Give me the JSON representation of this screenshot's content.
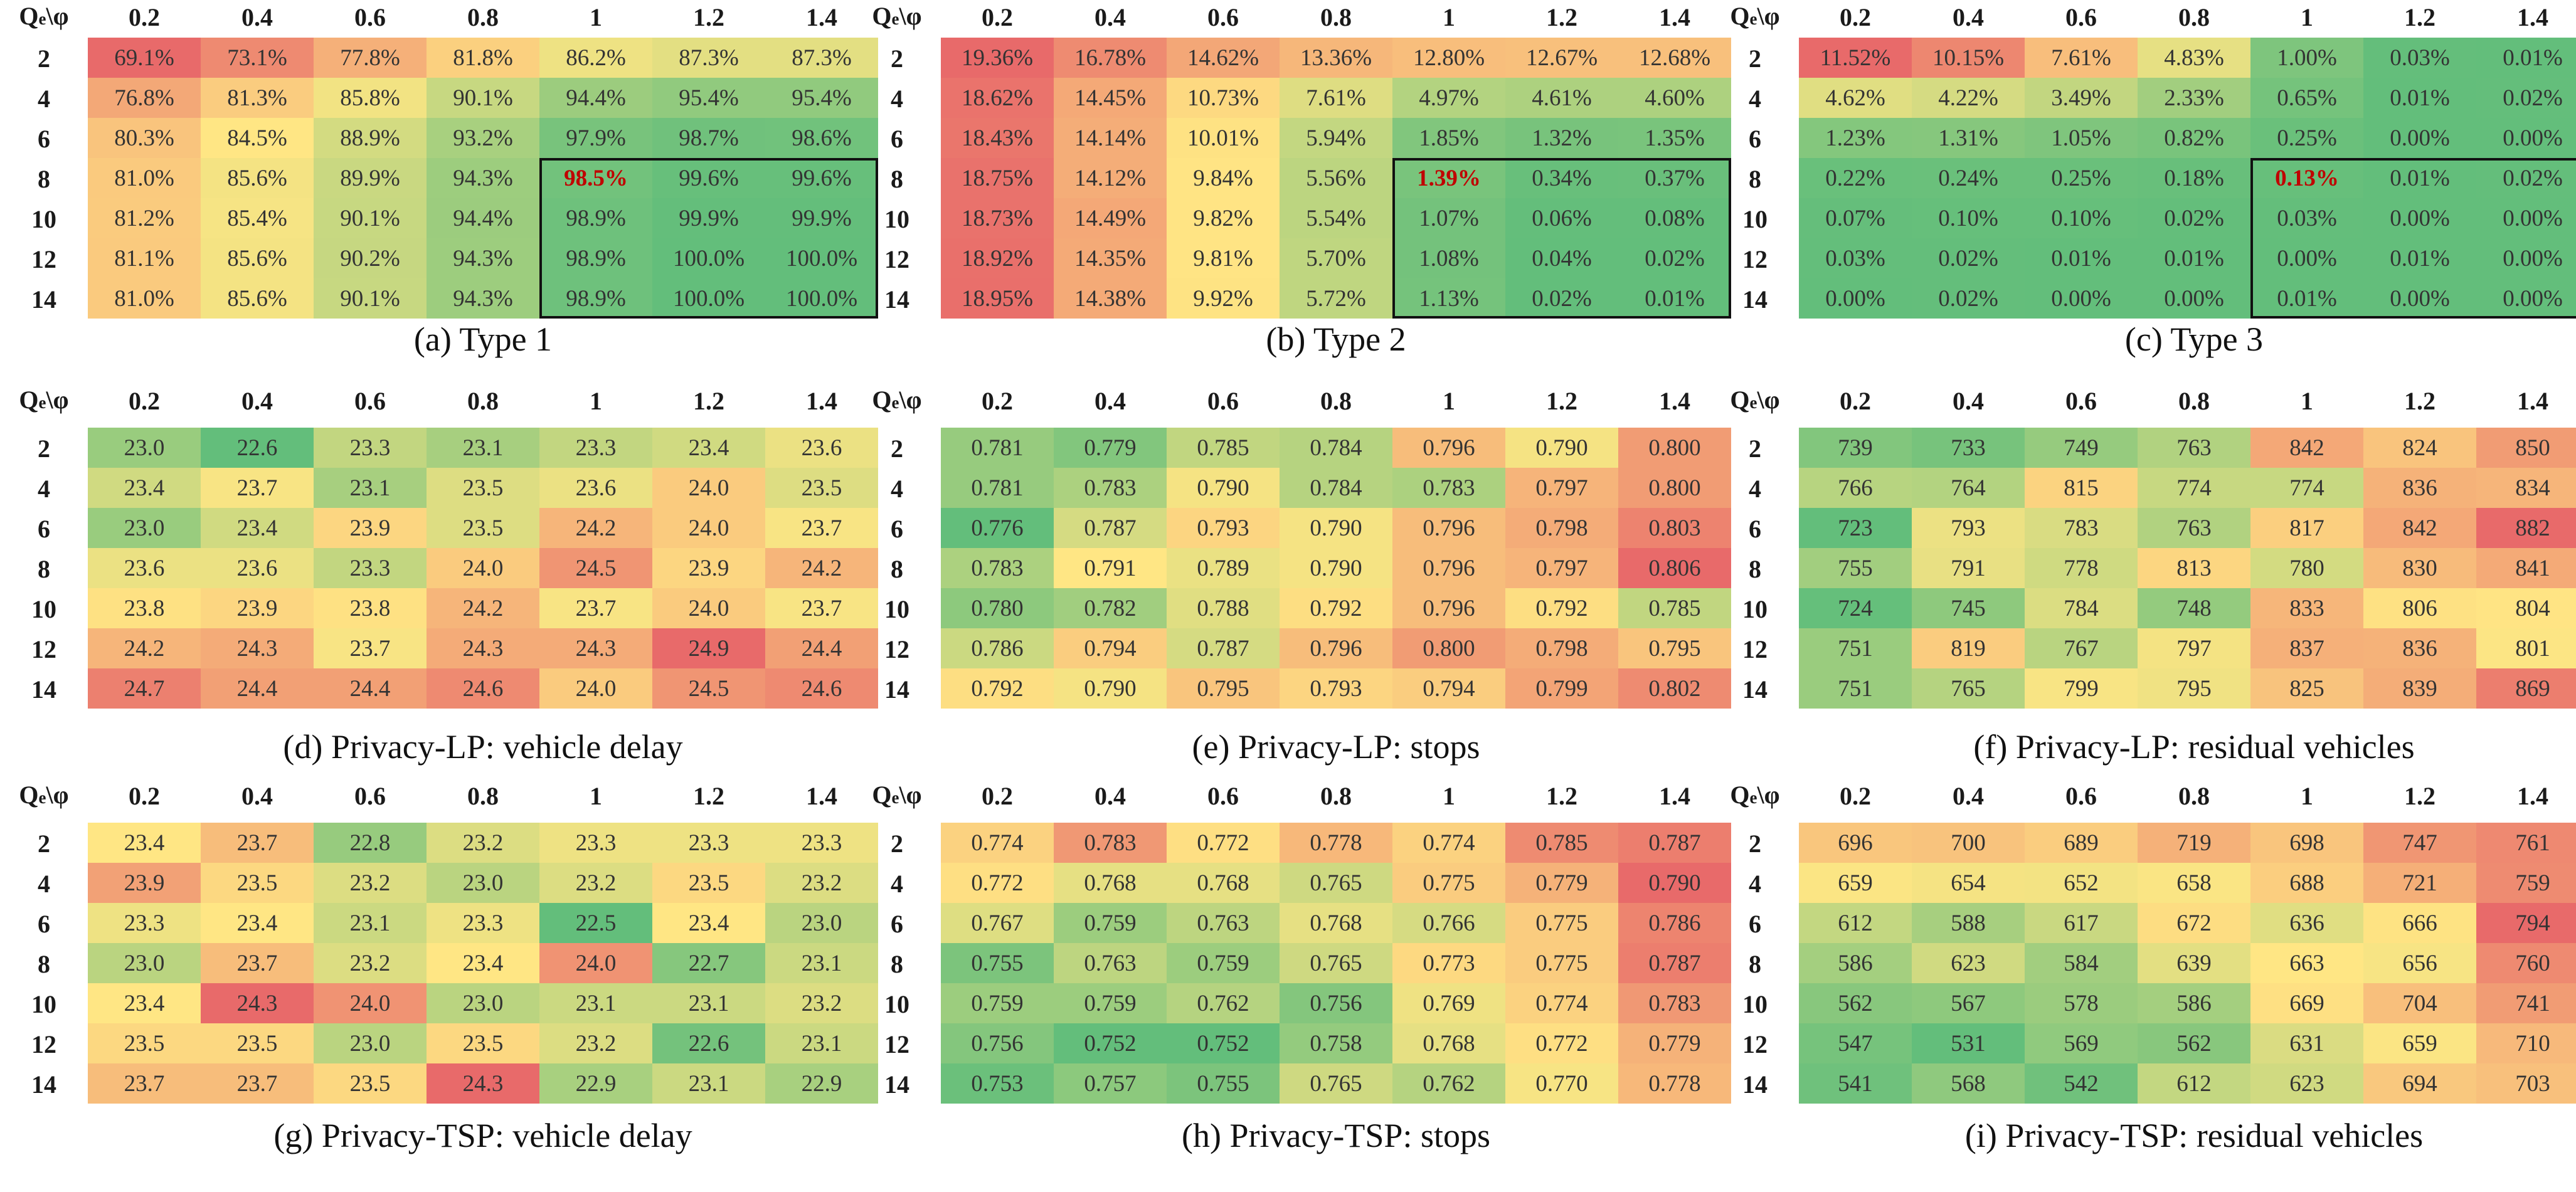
{
  "figure": {
    "corner_label": {
      "main": "Q",
      "sub": "e",
      "tail": "\\φ"
    },
    "columns": [
      "0.2",
      "0.4",
      "0.6",
      "0.8",
      "1",
      "1.2",
      "1.4"
    ],
    "rows": [
      "2",
      "4",
      "6",
      "8",
      "10",
      "12",
      "14"
    ]
  },
  "chart_data": [
    {
      "type": "heatmap",
      "title": "(a) Type 1",
      "color_scale": "low=red, high=green",
      "highlight": {
        "row": "8",
        "col": "1"
      },
      "boxed_region": {
        "rows": [
          "8",
          "14"
        ],
        "cols": [
          "1",
          "1.4"
        ]
      },
      "values": [
        [
          "69.1%",
          "73.1%",
          "77.8%",
          "81.8%",
          "86.2%",
          "87.3%",
          "87.3%"
        ],
        [
          "76.8%",
          "81.3%",
          "85.8%",
          "90.1%",
          "94.4%",
          "95.4%",
          "95.4%"
        ],
        [
          "80.3%",
          "84.5%",
          "88.9%",
          "93.2%",
          "97.9%",
          "98.7%",
          "98.6%"
        ],
        [
          "81.0%",
          "85.6%",
          "89.9%",
          "94.3%",
          "98.5%",
          "99.6%",
          "99.6%"
        ],
        [
          "81.2%",
          "85.4%",
          "90.1%",
          "94.4%",
          "98.9%",
          "99.9%",
          "99.9%"
        ],
        [
          "81.1%",
          "85.6%",
          "90.2%",
          "94.3%",
          "98.9%",
          "100.0%",
          "100.0%"
        ],
        [
          "81.0%",
          "85.6%",
          "90.1%",
          "94.3%",
          "98.9%",
          "100.0%",
          "100.0%"
        ]
      ]
    },
    {
      "type": "heatmap",
      "title": "(b) Type 2",
      "color_scale": "low=green, high=red",
      "highlight": {
        "row": "8",
        "col": "1"
      },
      "boxed_region": {
        "rows": [
          "8",
          "14"
        ],
        "cols": [
          "1",
          "1.4"
        ]
      },
      "values": [
        [
          "19.36%",
          "16.78%",
          "14.62%",
          "13.36%",
          "12.80%",
          "12.67%",
          "12.68%"
        ],
        [
          "18.62%",
          "14.45%",
          "10.73%",
          "7.61%",
          "4.97%",
          "4.61%",
          "4.60%"
        ],
        [
          "18.43%",
          "14.14%",
          "10.01%",
          "5.94%",
          "1.85%",
          "1.32%",
          "1.35%"
        ],
        [
          "18.75%",
          "14.12%",
          "9.84%",
          "5.56%",
          "1.39%",
          "0.34%",
          "0.37%"
        ],
        [
          "18.73%",
          "14.49%",
          "9.82%",
          "5.54%",
          "1.07%",
          "0.06%",
          "0.08%"
        ],
        [
          "18.92%",
          "14.35%",
          "9.81%",
          "5.70%",
          "1.08%",
          "0.04%",
          "0.02%"
        ],
        [
          "18.95%",
          "14.38%",
          "9.92%",
          "5.72%",
          "1.13%",
          "0.02%",
          "0.01%"
        ]
      ]
    },
    {
      "type": "heatmap",
      "title": "(c) Type 3",
      "color_scale": "low=green, high=red",
      "highlight": {
        "row": "8",
        "col": "1"
      },
      "boxed_region": {
        "rows": [
          "8",
          "14"
        ],
        "cols": [
          "1",
          "1.4"
        ]
      },
      "values": [
        [
          "11.52%",
          "10.15%",
          "7.61%",
          "4.83%",
          "1.00%",
          "0.03%",
          "0.01%"
        ],
        [
          "4.62%",
          "4.22%",
          "3.49%",
          "2.33%",
          "0.65%",
          "0.01%",
          "0.02%"
        ],
        [
          "1.23%",
          "1.31%",
          "1.05%",
          "0.82%",
          "0.25%",
          "0.00%",
          "0.00%"
        ],
        [
          "0.22%",
          "0.24%",
          "0.25%",
          "0.18%",
          "0.13%",
          "0.01%",
          "0.02%"
        ],
        [
          "0.07%",
          "0.10%",
          "0.10%",
          "0.02%",
          "0.03%",
          "0.00%",
          "0.00%"
        ],
        [
          "0.03%",
          "0.02%",
          "0.01%",
          "0.01%",
          "0.00%",
          "0.01%",
          "0.00%"
        ],
        [
          "0.00%",
          "0.02%",
          "0.00%",
          "0.00%",
          "0.01%",
          "0.00%",
          "0.00%"
        ]
      ]
    },
    {
      "type": "heatmap",
      "title": "(d) Privacy-LP: vehicle delay",
      "color_scale": "low=green, high=red",
      "values": [
        [
          "23.0",
          "22.6",
          "23.3",
          "23.1",
          "23.3",
          "23.4",
          "23.6"
        ],
        [
          "23.4",
          "23.7",
          "23.1",
          "23.5",
          "23.6",
          "24.0",
          "23.5"
        ],
        [
          "23.0",
          "23.4",
          "23.9",
          "23.5",
          "24.2",
          "24.0",
          "23.7"
        ],
        [
          "23.6",
          "23.6",
          "23.3",
          "24.0",
          "24.5",
          "23.9",
          "24.2"
        ],
        [
          "23.8",
          "23.9",
          "23.8",
          "24.2",
          "23.7",
          "24.0",
          "23.7"
        ],
        [
          "24.2",
          "24.3",
          "23.7",
          "24.3",
          "24.3",
          "24.9",
          "24.4"
        ],
        [
          "24.7",
          "24.4",
          "24.4",
          "24.6",
          "24.0",
          "24.5",
          "24.6"
        ]
      ]
    },
    {
      "type": "heatmap",
      "title": "(e) Privacy-LP: stops",
      "color_scale": "low=green, high=red",
      "values": [
        [
          "0.781",
          "0.779",
          "0.785",
          "0.784",
          "0.796",
          "0.790",
          "0.800"
        ],
        [
          "0.781",
          "0.783",
          "0.790",
          "0.784",
          "0.783",
          "0.797",
          "0.800"
        ],
        [
          "0.776",
          "0.787",
          "0.793",
          "0.790",
          "0.796",
          "0.798",
          "0.803"
        ],
        [
          "0.783",
          "0.791",
          "0.789",
          "0.790",
          "0.796",
          "0.797",
          "0.806"
        ],
        [
          "0.780",
          "0.782",
          "0.788",
          "0.792",
          "0.796",
          "0.792",
          "0.785"
        ],
        [
          "0.786",
          "0.794",
          "0.787",
          "0.796",
          "0.800",
          "0.798",
          "0.795"
        ],
        [
          "0.792",
          "0.790",
          "0.795",
          "0.793",
          "0.794",
          "0.799",
          "0.802"
        ]
      ]
    },
    {
      "type": "heatmap",
      "title": "(f) Privacy-LP: residual vehicles",
      "color_scale": "low=green, high=red",
      "values": [
        [
          "739",
          "733",
          "749",
          "763",
          "842",
          "824",
          "850"
        ],
        [
          "766",
          "764",
          "815",
          "774",
          "774",
          "836",
          "834"
        ],
        [
          "723",
          "793",
          "783",
          "763",
          "817",
          "842",
          "882"
        ],
        [
          "755",
          "791",
          "778",
          "813",
          "780",
          "830",
          "841"
        ],
        [
          "724",
          "745",
          "784",
          "748",
          "833",
          "806",
          "804"
        ],
        [
          "751",
          "819",
          "767",
          "797",
          "837",
          "836",
          "801"
        ],
        [
          "751",
          "765",
          "799",
          "795",
          "825",
          "839",
          "869"
        ]
      ]
    },
    {
      "type": "heatmap",
      "title": "(g) Privacy-TSP: vehicle delay",
      "color_scale": "low=green, high=red",
      "values": [
        [
          "23.4",
          "23.7",
          "22.8",
          "23.2",
          "23.3",
          "23.3",
          "23.3"
        ],
        [
          "23.9",
          "23.5",
          "23.2",
          "23.0",
          "23.2",
          "23.5",
          "23.2"
        ],
        [
          "23.3",
          "23.4",
          "23.1",
          "23.3",
          "22.5",
          "23.4",
          "23.0"
        ],
        [
          "23.0",
          "23.7",
          "23.2",
          "23.4",
          "24.0",
          "22.7",
          "23.1"
        ],
        [
          "23.4",
          "24.3",
          "24.0",
          "23.0",
          "23.1",
          "23.1",
          "23.2"
        ],
        [
          "23.5",
          "23.5",
          "23.0",
          "23.5",
          "23.2",
          "22.6",
          "23.1"
        ],
        [
          "23.7",
          "23.7",
          "23.5",
          "24.3",
          "22.9",
          "23.1",
          "22.9"
        ]
      ]
    },
    {
      "type": "heatmap",
      "title": "(h) Privacy-TSP: stops",
      "color_scale": "low=green, high=red",
      "values": [
        [
          "0.774",
          "0.783",
          "0.772",
          "0.778",
          "0.774",
          "0.785",
          "0.787"
        ],
        [
          "0.772",
          "0.768",
          "0.768",
          "0.765",
          "0.775",
          "0.779",
          "0.790"
        ],
        [
          "0.767",
          "0.759",
          "0.763",
          "0.768",
          "0.766",
          "0.775",
          "0.786"
        ],
        [
          "0.755",
          "0.763",
          "0.759",
          "0.765",
          "0.773",
          "0.775",
          "0.787"
        ],
        [
          "0.759",
          "0.759",
          "0.762",
          "0.756",
          "0.769",
          "0.774",
          "0.783"
        ],
        [
          "0.756",
          "0.752",
          "0.752",
          "0.758",
          "0.768",
          "0.772",
          "0.779"
        ],
        [
          "0.753",
          "0.757",
          "0.755",
          "0.765",
          "0.762",
          "0.770",
          "0.778"
        ]
      ]
    },
    {
      "type": "heatmap",
      "title": "(i) Privacy-TSP: residual vehicles",
      "color_scale": "low=green, high=red",
      "values": [
        [
          "696",
          "700",
          "689",
          "719",
          "698",
          "747",
          "761"
        ],
        [
          "659",
          "654",
          "652",
          "658",
          "688",
          "721",
          "759"
        ],
        [
          "612",
          "588",
          "617",
          "672",
          "636",
          "666",
          "794"
        ],
        [
          "586",
          "623",
          "584",
          "639",
          "663",
          "656",
          "760"
        ],
        [
          "562",
          "567",
          "578",
          "586",
          "669",
          "704",
          "741"
        ],
        [
          "547",
          "531",
          "569",
          "562",
          "631",
          "659",
          "710"
        ],
        [
          "541",
          "568",
          "542",
          "612",
          "623",
          "694",
          "703"
        ]
      ]
    }
  ]
}
